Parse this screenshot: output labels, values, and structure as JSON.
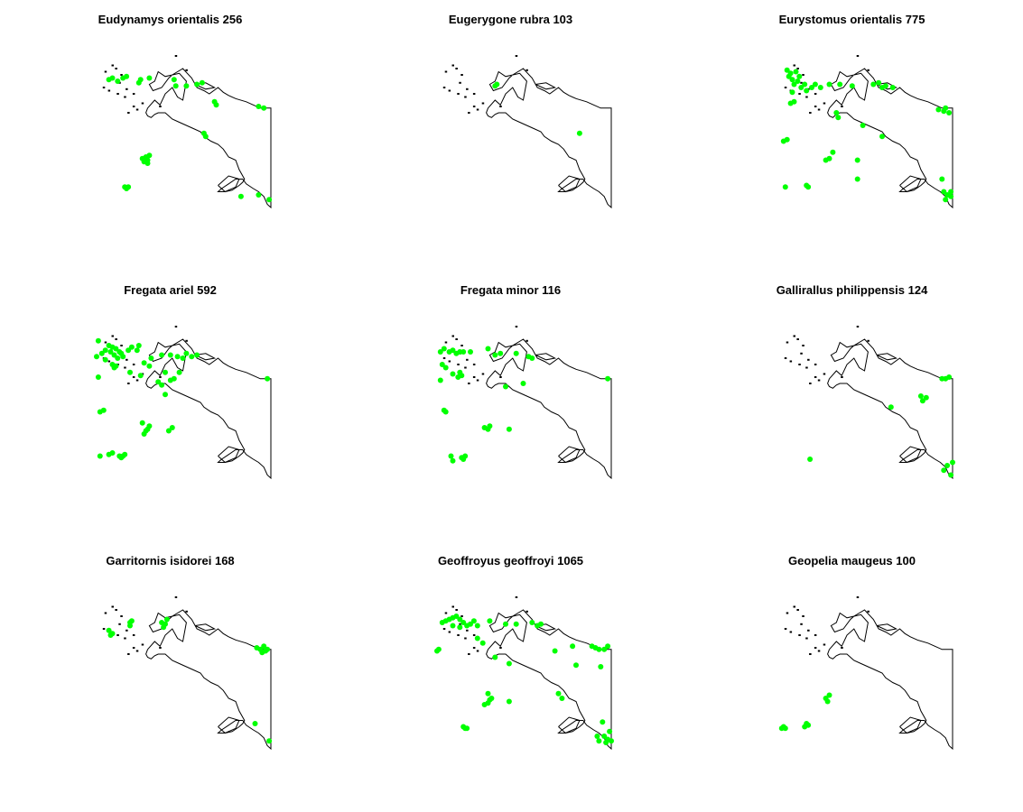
{
  "chart_data": [
    {
      "type": "scatter",
      "title": "Eudynamys orientalis 256",
      "point_color": "#00ff00",
      "points": [
        [
          0.08,
          0.19
        ],
        [
          0.1,
          0.18
        ],
        [
          0.13,
          0.2
        ],
        [
          0.16,
          0.18
        ],
        [
          0.18,
          0.17
        ],
        [
          0.25,
          0.21
        ],
        [
          0.26,
          0.19
        ],
        [
          0.31,
          0.18
        ],
        [
          0.45,
          0.19
        ],
        [
          0.46,
          0.23
        ],
        [
          0.52,
          0.23
        ],
        [
          0.58,
          0.22
        ],
        [
          0.61,
          0.21
        ],
        [
          0.68,
          0.33
        ],
        [
          0.69,
          0.35
        ],
        [
          0.93,
          0.36
        ],
        [
          0.96,
          0.37
        ],
        [
          0.62,
          0.53
        ],
        [
          0.63,
          0.55
        ],
        [
          0.27,
          0.69
        ],
        [
          0.28,
          0.71
        ],
        [
          0.29,
          0.68
        ],
        [
          0.3,
          0.72
        ],
        [
          0.3,
          0.7
        ],
        [
          0.31,
          0.67
        ],
        [
          0.17,
          0.87
        ],
        [
          0.18,
          0.88
        ],
        [
          0.19,
          0.87
        ],
        [
          0.83,
          0.93
        ],
        [
          0.93,
          0.92
        ],
        [
          0.99,
          0.95
        ]
      ]
    },
    {
      "type": "scatter",
      "title": "Eugerygone rubra 103",
      "point_color": "#00ff00",
      "points": [
        [
          0.34,
          0.23
        ],
        [
          0.35,
          0.22
        ],
        [
          0.82,
          0.53
        ]
      ]
    },
    {
      "type": "scatter",
      "title": "Eurystomus orientalis 775",
      "point_color": "#00ff00",
      "points": [
        [
          0.06,
          0.13
        ],
        [
          0.07,
          0.17
        ],
        [
          0.08,
          0.15
        ],
        [
          0.09,
          0.19
        ],
        [
          0.1,
          0.22
        ],
        [
          0.12,
          0.2
        ],
        [
          0.13,
          0.17
        ],
        [
          0.11,
          0.14
        ],
        [
          0.14,
          0.24
        ],
        [
          0.16,
          0.22
        ],
        [
          0.17,
          0.26
        ],
        [
          0.2,
          0.24
        ],
        [
          0.22,
          0.22
        ],
        [
          0.09,
          0.27
        ],
        [
          0.1,
          0.33
        ],
        [
          0.08,
          0.34
        ],
        [
          0.25,
          0.24
        ],
        [
          0.3,
          0.22
        ],
        [
          0.36,
          0.22
        ],
        [
          0.43,
          0.23
        ],
        [
          0.55,
          0.22
        ],
        [
          0.58,
          0.21
        ],
        [
          0.6,
          0.24
        ],
        [
          0.62,
          0.23
        ],
        [
          0.66,
          0.24
        ],
        [
          0.34,
          0.4
        ],
        [
          0.35,
          0.43
        ],
        [
          0.49,
          0.48
        ],
        [
          0.6,
          0.55
        ],
        [
          0.92,
          0.38
        ],
        [
          0.95,
          0.39
        ],
        [
          0.96,
          0.37
        ],
        [
          0.98,
          0.4
        ],
        [
          0.06,
          0.57
        ],
        [
          0.04,
          0.58
        ],
        [
          0.32,
          0.65
        ],
        [
          0.3,
          0.69
        ],
        [
          0.28,
          0.7
        ],
        [
          0.46,
          0.7
        ],
        [
          0.05,
          0.87
        ],
        [
          0.17,
          0.86
        ],
        [
          0.18,
          0.87
        ],
        [
          0.46,
          0.82
        ],
        [
          0.94,
          0.82
        ],
        [
          0.95,
          0.9
        ],
        [
          0.97,
          0.92
        ],
        [
          0.99,
          0.9
        ],
        [
          0.99,
          0.93
        ],
        [
          0.96,
          0.95
        ]
      ]
    },
    {
      "type": "scatter",
      "title": "Fregata ariel 592",
      "point_color": "#00ff00",
      "points": [
        [
          0.01,
          0.23
        ],
        [
          0.02,
          0.13
        ],
        [
          0.04,
          0.21
        ],
        [
          0.06,
          0.19
        ],
        [
          0.06,
          0.25
        ],
        [
          0.08,
          0.16
        ],
        [
          0.09,
          0.2
        ],
        [
          0.1,
          0.17
        ],
        [
          0.11,
          0.22
        ],
        [
          0.12,
          0.18
        ],
        [
          0.13,
          0.24
        ],
        [
          0.14,
          0.2
        ],
        [
          0.15,
          0.21
        ],
        [
          0.16,
          0.23
        ],
        [
          0.1,
          0.28
        ],
        [
          0.11,
          0.3
        ],
        [
          0.12,
          0.29
        ],
        [
          0.19,
          0.19
        ],
        [
          0.21,
          0.17
        ],
        [
          0.24,
          0.19
        ],
        [
          0.25,
          0.16
        ],
        [
          0.28,
          0.27
        ],
        [
          0.32,
          0.24
        ],
        [
          0.38,
          0.22
        ],
        [
          0.43,
          0.22
        ],
        [
          0.47,
          0.23
        ],
        [
          0.5,
          0.24
        ],
        [
          0.52,
          0.21
        ],
        [
          0.55,
          0.23
        ],
        [
          0.58,
          0.22
        ],
        [
          0.2,
          0.33
        ],
        [
          0.26,
          0.35
        ],
        [
          0.31,
          0.29
        ],
        [
          0.36,
          0.39
        ],
        [
          0.38,
          0.41
        ],
        [
          0.4,
          0.33
        ],
        [
          0.43,
          0.38
        ],
        [
          0.45,
          0.37
        ],
        [
          0.48,
          0.33
        ],
        [
          0.4,
          0.47
        ],
        [
          0.02,
          0.36
        ],
        [
          0.03,
          0.58
        ],
        [
          0.05,
          0.57
        ],
        [
          0.27,
          0.65
        ],
        [
          0.29,
          0.7
        ],
        [
          0.3,
          0.69
        ],
        [
          0.31,
          0.67
        ],
        [
          0.28,
          0.72
        ],
        [
          0.42,
          0.7
        ],
        [
          0.44,
          0.68
        ],
        [
          0.03,
          0.86
        ],
        [
          0.08,
          0.85
        ],
        [
          0.1,
          0.84
        ],
        [
          0.14,
          0.86
        ],
        [
          0.15,
          0.87
        ],
        [
          0.16,
          0.86
        ],
        [
          0.17,
          0.85
        ],
        [
          0.98,
          0.37
        ]
      ]
    },
    {
      "type": "scatter",
      "title": "Fregata minor 116",
      "point_color": "#00ff00",
      "points": [
        [
          0.03,
          0.2
        ],
        [
          0.05,
          0.18
        ],
        [
          0.08,
          0.2
        ],
        [
          0.1,
          0.19
        ],
        [
          0.12,
          0.21
        ],
        [
          0.14,
          0.2
        ],
        [
          0.16,
          0.2
        ],
        [
          0.2,
          0.2
        ],
        [
          0.3,
          0.18
        ],
        [
          0.34,
          0.22
        ],
        [
          0.37,
          0.21
        ],
        [
          0.46,
          0.21
        ],
        [
          0.53,
          0.23
        ],
        [
          0.55,
          0.24
        ],
        [
          0.04,
          0.28
        ],
        [
          0.06,
          0.3
        ],
        [
          0.1,
          0.34
        ],
        [
          0.14,
          0.33
        ],
        [
          0.13,
          0.36
        ],
        [
          0.15,
          0.35
        ],
        [
          0.4,
          0.42
        ],
        [
          0.5,
          0.4
        ],
        [
          0.03,
          0.38
        ],
        [
          0.05,
          0.57
        ],
        [
          0.06,
          0.58
        ],
        [
          0.28,
          0.68
        ],
        [
          0.3,
          0.69
        ],
        [
          0.31,
          0.67
        ],
        [
          0.42,
          0.69
        ],
        [
          0.09,
          0.86
        ],
        [
          0.1,
          0.89
        ],
        [
          0.15,
          0.87
        ],
        [
          0.16,
          0.88
        ],
        [
          0.17,
          0.86
        ],
        [
          0.98,
          0.37
        ]
      ]
    },
    {
      "type": "scatter",
      "title": "Gallirallus philippensis 124",
      "point_color": "#00ff00",
      "points": [
        [
          0.94,
          0.37
        ],
        [
          0.96,
          0.37
        ],
        [
          0.98,
          0.36
        ],
        [
          0.82,
          0.48
        ],
        [
          0.83,
          0.51
        ],
        [
          0.85,
          0.49
        ],
        [
          0.65,
          0.55
        ],
        [
          0.19,
          0.88
        ],
        [
          0.95,
          0.95
        ],
        [
          0.97,
          0.92
        ],
        [
          0.99,
          0.98
        ],
        [
          1.0,
          0.9
        ]
      ]
    },
    {
      "type": "scatter",
      "title": "Garritornis isidorei 168",
      "point_color": "#00ff00",
      "points": [
        [
          0.08,
          0.25
        ],
        [
          0.09,
          0.28
        ],
        [
          0.1,
          0.27
        ],
        [
          0.2,
          0.2
        ],
        [
          0.2,
          0.22
        ],
        [
          0.21,
          0.19
        ],
        [
          0.38,
          0.2
        ],
        [
          0.39,
          0.23
        ],
        [
          0.4,
          0.21
        ],
        [
          0.41,
          0.18
        ],
        [
          0.92,
          0.36
        ],
        [
          0.94,
          0.37
        ],
        [
          0.96,
          0.35
        ],
        [
          0.98,
          0.37
        ],
        [
          0.97,
          0.38
        ],
        [
          0.95,
          0.39
        ],
        [
          0.91,
          0.84
        ],
        [
          0.99,
          0.95
        ]
      ]
    },
    {
      "type": "scatter",
      "title": "Geoffroyus geoffroyi 1065",
      "point_color": "#00ff00",
      "points": [
        [
          0.04,
          0.2
        ],
        [
          0.06,
          0.19
        ],
        [
          0.08,
          0.18
        ],
        [
          0.1,
          0.17
        ],
        [
          0.12,
          0.16
        ],
        [
          0.14,
          0.18
        ],
        [
          0.16,
          0.2
        ],
        [
          0.18,
          0.22
        ],
        [
          0.2,
          0.21
        ],
        [
          0.22,
          0.19
        ],
        [
          0.24,
          0.22
        ],
        [
          0.1,
          0.22
        ],
        [
          0.14,
          0.23
        ],
        [
          0.31,
          0.19
        ],
        [
          0.4,
          0.21
        ],
        [
          0.46,
          0.21
        ],
        [
          0.55,
          0.2
        ],
        [
          0.58,
          0.22
        ],
        [
          0.6,
          0.21
        ],
        [
          0.24,
          0.3
        ],
        [
          0.27,
          0.33
        ],
        [
          0.34,
          0.42
        ],
        [
          0.42,
          0.46
        ],
        [
          0.68,
          0.38
        ],
        [
          0.78,
          0.35
        ],
        [
          0.89,
          0.35
        ],
        [
          0.91,
          0.36
        ],
        [
          0.93,
          0.37
        ],
        [
          0.96,
          0.37
        ],
        [
          0.98,
          0.35
        ],
        [
          0.94,
          0.48
        ],
        [
          0.8,
          0.47
        ],
        [
          0.01,
          0.38
        ],
        [
          0.02,
          0.37
        ],
        [
          0.3,
          0.65
        ],
        [
          0.31,
          0.69
        ],
        [
          0.3,
          0.71
        ],
        [
          0.28,
          0.72
        ],
        [
          0.32,
          0.68
        ],
        [
          0.42,
          0.7
        ],
        [
          0.7,
          0.65
        ],
        [
          0.72,
          0.68
        ],
        [
          0.16,
          0.86
        ],
        [
          0.17,
          0.87
        ],
        [
          0.18,
          0.87
        ],
        [
          0.95,
          0.83
        ],
        [
          0.92,
          0.92
        ],
        [
          0.93,
          0.95
        ],
        [
          0.96,
          0.92
        ],
        [
          0.98,
          0.94
        ],
        [
          0.99,
          0.89
        ],
        [
          1.0,
          0.95
        ],
        [
          0.97,
          0.96
        ]
      ]
    },
    {
      "type": "scatter",
      "title": "Geopelia maugeus 100",
      "point_color": "#00ff00",
      "points": [
        [
          0.28,
          0.68
        ],
        [
          0.29,
          0.7
        ],
        [
          0.3,
          0.66
        ],
        [
          0.03,
          0.87
        ],
        [
          0.04,
          0.86
        ],
        [
          0.05,
          0.87
        ],
        [
          0.16,
          0.86
        ],
        [
          0.17,
          0.84
        ],
        [
          0.18,
          0.85
        ]
      ]
    }
  ]
}
